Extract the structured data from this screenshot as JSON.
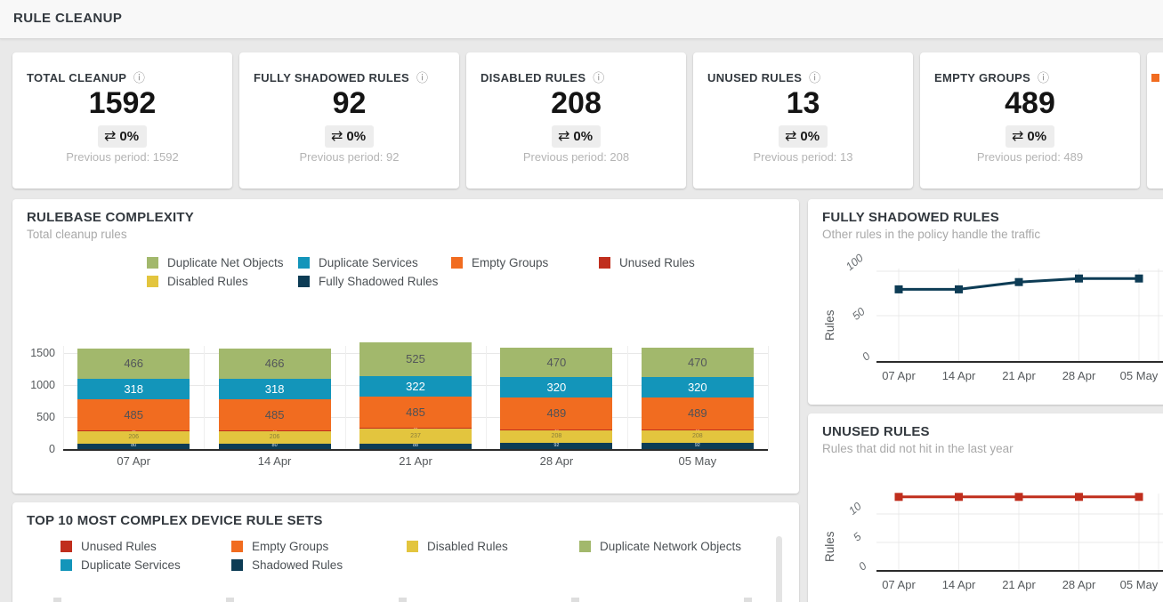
{
  "header": {
    "title": "RULE CLEANUP"
  },
  "icons": {
    "info_icon": "ⓘ",
    "change_icon": "⇄"
  },
  "colors": {
    "duplicate_net_objects": "#a2b86c",
    "duplicate_services": "#1395ba",
    "empty_groups": "#f16c20",
    "unused_rules": "#c02e1d",
    "disabled_rules": "#e3c53e",
    "fully_shadowed_rules": "#0d3c55",
    "partial_card_accent": "#f16c20"
  },
  "kpi_cards": [
    {
      "title": "TOTAL CLEANUP",
      "value": "1592",
      "change": "0%",
      "previous_label": "Previous period: 1592"
    },
    {
      "title": "FULLY SHADOWED RULES",
      "value": "92",
      "change": "0%",
      "previous_label": "Previous period: 92"
    },
    {
      "title": "DISABLED RULES",
      "value": "208",
      "change": "0%",
      "previous_label": "Previous period: 208"
    },
    {
      "title": "UNUSED RULES",
      "value": "13",
      "change": "0%",
      "previous_label": "Previous period: 13"
    },
    {
      "title": "EMPTY GROUPS",
      "value": "489",
      "change": "0%",
      "previous_label": "Previous period: 489"
    }
  ],
  "panels": {
    "rulebase": {
      "title": "RULEBASE COMPLEXITY",
      "subtitle": "Total cleanup rules"
    },
    "shadowed": {
      "title": "FULLY SHADOWED RULES",
      "subtitle": "Other rules in the policy handle the traffic",
      "ylabel": "Rules"
    },
    "unused": {
      "title": "UNUSED RULES",
      "subtitle": "Rules that did not hit in the last year",
      "ylabel": "Rules"
    },
    "top10": {
      "title": "TOP 10 MOST COMPLEX DEVICE RULE SETS"
    }
  },
  "legends": {
    "rulebase": [
      {
        "label": "Duplicate Net Objects",
        "color": "#a2b86c"
      },
      {
        "label": "Duplicate Services",
        "color": "#1395ba"
      },
      {
        "label": "Empty Groups",
        "color": "#f16c20"
      },
      {
        "label": "Unused Rules",
        "color": "#c02e1d"
      },
      {
        "label": "Disabled Rules",
        "color": "#e3c53e"
      },
      {
        "label": "Fully Shadowed Rules",
        "color": "#0d3c55"
      }
    ],
    "top10": [
      {
        "label": "Unused Rules",
        "color": "#c02e1d"
      },
      {
        "label": "Empty Groups",
        "color": "#f16c20"
      },
      {
        "label": "Disabled Rules",
        "color": "#e3c53e"
      },
      {
        "label": "Duplicate Network Objects",
        "color": "#a2b86c"
      },
      {
        "label": "Duplicate Services",
        "color": "#1395ba"
      },
      {
        "label": "Shadowed Rules",
        "color": "#0d3c55"
      }
    ]
  },
  "chart_data": [
    {
      "id": "rulebase_complexity",
      "type": "bar",
      "stacked": true,
      "title": "RULEBASE COMPLEXITY",
      "subtitle": "Total cleanup rules",
      "categories": [
        "07 Apr",
        "14 Apr",
        "21 Apr",
        "28 Apr",
        "05 May"
      ],
      "series": [
        {
          "name": "Fully Shadowed Rules",
          "color": "#0d3c55",
          "values": [
            80,
            80,
            88,
            92,
            92
          ]
        },
        {
          "name": "Disabled Rules",
          "color": "#e3c53e",
          "values": [
            206,
            206,
            237,
            208,
            208
          ]
        },
        {
          "name": "Unused Rules",
          "color": "#c02e1d",
          "values": [
            13,
            13,
            13,
            13,
            13
          ]
        },
        {
          "name": "Empty Groups",
          "color": "#f16c20",
          "values": [
            485,
            485,
            485,
            489,
            489
          ]
        },
        {
          "name": "Duplicate Services",
          "color": "#1395ba",
          "values": [
            318,
            318,
            322,
            320,
            320
          ]
        },
        {
          "name": "Duplicate Net Objects",
          "color": "#a2b86c",
          "values": [
            466,
            466,
            525,
            470,
            470
          ]
        }
      ],
      "yticks": [
        0,
        500,
        1000,
        1500
      ],
      "ylim": [
        0,
        1700
      ],
      "grid": true,
      "legend_position": "top"
    },
    {
      "id": "fully_shadowed_trend",
      "type": "line",
      "title": "FULLY SHADOWED RULES",
      "subtitle": "Other rules in the policy handle the traffic",
      "x": [
        "07 Apr",
        "14 Apr",
        "21 Apr",
        "28 Apr",
        "05 May"
      ],
      "values": [
        80,
        80,
        88,
        92,
        92
      ],
      "color": "#0d3c55",
      "ylabel": "Rules",
      "yticks": [
        0,
        50,
        100
      ],
      "ylim": [
        0,
        100
      ],
      "grid": true,
      "marker": "square"
    },
    {
      "id": "unused_trend",
      "type": "line",
      "title": "UNUSED RULES",
      "subtitle": "Rules that did not hit in the last year",
      "x": [
        "07 Apr",
        "14 Apr",
        "21 Apr",
        "28 Apr",
        "05 May"
      ],
      "values": [
        13,
        13,
        13,
        13,
        13
      ],
      "color": "#c02e1d",
      "ylabel": "Rules",
      "yticks": [
        0,
        5,
        10
      ],
      "ylim": [
        0,
        14
      ],
      "grid": true,
      "marker": "square"
    }
  ]
}
